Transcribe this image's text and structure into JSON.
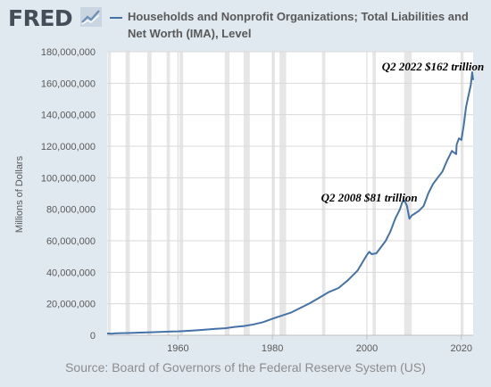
{
  "header": {
    "logo_text": "FRED",
    "logo_icon": "line-chart-icon",
    "legend_label": "Households and Nonprofit Organizations; Total Liabilities and Net Worth (IMA), Level",
    "legend_color": "#4572a7"
  },
  "source": "Source: Board of Governors of the Federal Reserve System (US)",
  "chart_data": {
    "type": "line",
    "ylabel": "Millions of Dollars",
    "xlim": [
      1945,
      2022.5
    ],
    "ylim": [
      0,
      180000000
    ],
    "yticks": [
      0,
      20000000,
      40000000,
      60000000,
      80000000,
      100000000,
      120000000,
      140000000,
      160000000,
      180000000
    ],
    "ytick_labels": [
      "0",
      "20,000,000",
      "40,000,000",
      "60,000,000",
      "80,000,000",
      "100,000,000",
      "120,000,000",
      "140,000,000",
      "160,000,000",
      "180,000,000"
    ],
    "xticks": [
      1960,
      1980,
      2000,
      2020
    ],
    "xtick_labels": [
      "1960",
      "1980",
      "2000",
      "2020"
    ],
    "grid": true,
    "line_color": "#4572a7",
    "recessions": [
      [
        1945.1,
        1945.8
      ],
      [
        1948.9,
        1949.8
      ],
      [
        1953.5,
        1954.4
      ],
      [
        1957.6,
        1958.3
      ],
      [
        1960.3,
        1961.1
      ],
      [
        1969.9,
        1970.9
      ],
      [
        1973.9,
        1975.2
      ],
      [
        1980.0,
        1980.5
      ],
      [
        1981.5,
        1982.9
      ],
      [
        1990.5,
        1991.2
      ],
      [
        2001.2,
        2001.9
      ],
      [
        2007.9,
        2009.5
      ],
      [
        2020.1,
        2020.4
      ]
    ],
    "annotations": [
      {
        "text": "Q2 2008  $81 trillion",
        "x": 2000.5,
        "y": 85000000,
        "anchor": "middle"
      },
      {
        "text": "Q2 2022  $162 trillion",
        "x": 2014.0,
        "y": 168000000,
        "anchor": "middle"
      }
    ],
    "series": [
      {
        "x": [
          1945,
          1946,
          1947,
          1950,
          1952,
          1955,
          1958,
          1960,
          1963,
          1965,
          1968,
          1970,
          1972,
          1974,
          1976,
          1978,
          1980,
          1982,
          1984,
          1986,
          1988,
          1990,
          1992,
          1994,
          1996,
          1998,
          2000,
          2000.5,
          2001,
          2002,
          2003,
          2004,
          2005,
          2006,
          2007,
          2007.5,
          2008,
          2008.5,
          2009,
          2009.5,
          2010,
          2011,
          2012,
          2013,
          2014,
          2015,
          2016,
          2017,
          2018,
          2018.9,
          2019,
          2019.5,
          2020,
          2020.5,
          2021,
          2021.5,
          2022,
          2022.3,
          2022.5
        ],
        "values": [
          1200000,
          1000000,
          1300000,
          1500000,
          1700000,
          2000000,
          2300000,
          2500000,
          3000000,
          3400000,
          4100000,
          4500000,
          5300000,
          5900000,
          6900000,
          8300000,
          10500000,
          12500000,
          14500000,
          17500000,
          20500000,
          24000000,
          27500000,
          30000000,
          35000000,
          41000000,
          51000000,
          53000000,
          51500000,
          52000000,
          56000000,
          60000000,
          66000000,
          74000000,
          80000000,
          84500000,
          85500000,
          82000000,
          74000000,
          76000000,
          77000000,
          79000000,
          82000000,
          90000000,
          96000000,
          100000000,
          104000000,
          111000000,
          117000000,
          115000000,
          121000000,
          125000000,
          124000000,
          133000000,
          145000000,
          152000000,
          159000000,
          167000000,
          162000000
        ]
      }
    ]
  }
}
